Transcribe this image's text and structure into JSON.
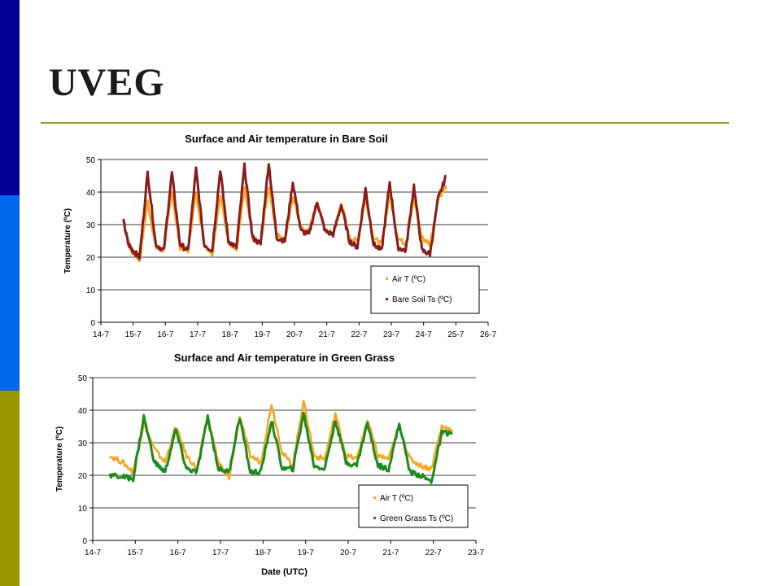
{
  "slide": {
    "title": "UVEG",
    "colors": {
      "bar_top": "#000099",
      "bar_mid": "#0066ee",
      "bar_bot": "#999900",
      "rule": "#999933"
    }
  },
  "chart_data": [
    {
      "type": "line",
      "title": "Surface and Air temperature in Bare Soil",
      "xlabel": "",
      "ylabel": "Temperature (ºC)",
      "x_ticks": [
        "14-7",
        "15-7",
        "16-7",
        "17-7",
        "18-7",
        "19-7",
        "20-7",
        "21-7",
        "22-7",
        "23-7",
        "24-7",
        "25-7",
        "26-7"
      ],
      "xlim": [
        0,
        12
      ],
      "ylim": [
        0,
        50
      ],
      "y_ticks": [
        0,
        10,
        20,
        30,
        40,
        50
      ],
      "grid": "horizontal",
      "legend_position": "bottom-right",
      "series": [
        {
          "name": "Air T (ºC)",
          "color": "#f5a623",
          "x": [
            0.7,
            0.85,
            0.95,
            1.05,
            1.2,
            1.45,
            1.7,
            1.95,
            2.2,
            2.45,
            2.7,
            2.95,
            3.2,
            3.45,
            3.7,
            3.95,
            4.2,
            4.45,
            4.7,
            4.95,
            5.2,
            5.45,
            5.7,
            5.95,
            6.2,
            6.45,
            6.7,
            6.95,
            7.2,
            7.45,
            7.7,
            7.95,
            8.2,
            8.45,
            8.7,
            8.95,
            9.2,
            9.45,
            9.7,
            9.95,
            10.2,
            10.45,
            10.7
          ],
          "y": [
            31,
            25,
            22,
            21,
            19,
            37,
            23,
            22,
            40,
            23,
            22,
            40,
            24,
            21,
            39,
            25,
            22,
            41,
            26,
            24,
            42,
            27,
            25,
            39,
            29,
            28,
            37,
            28,
            27,
            37,
            26,
            25,
            38,
            26,
            24,
            39,
            26,
            24,
            38,
            26,
            24,
            38,
            42
          ]
        },
        {
          "name": "Bare Soil Ts (ºC)",
          "color": "#8b1a1a",
          "x": [
            0.7,
            0.85,
            1.0,
            1.2,
            1.45,
            1.7,
            1.95,
            2.2,
            2.45,
            2.7,
            2.95,
            3.2,
            3.45,
            3.7,
            3.95,
            4.2,
            4.45,
            4.7,
            4.95,
            5.2,
            5.45,
            5.7,
            5.95,
            6.2,
            6.45,
            6.7,
            6.95,
            7.2,
            7.45,
            7.7,
            7.95,
            8.2,
            8.45,
            8.7,
            8.95,
            9.2,
            9.45,
            9.7,
            9.95,
            10.2,
            10.45,
            10.7
          ],
          "y": [
            31,
            24,
            22,
            20,
            46,
            24,
            22,
            46,
            24,
            22,
            47,
            24,
            22,
            47,
            25,
            23,
            48,
            26,
            24,
            49,
            26,
            25,
            43,
            28,
            27,
            37,
            28,
            27,
            36,
            25,
            23,
            41,
            24,
            22,
            43,
            23,
            22,
            42,
            22,
            21,
            38,
            45
          ]
        }
      ]
    },
    {
      "type": "line",
      "title": "Surface and Air temperature in Green Grass",
      "xlabel": "Date (UTC)",
      "ylabel": "Temperature (ºC)",
      "x_ticks": [
        "14-7",
        "15-7",
        "16-7",
        "17-7",
        "18-7",
        "19-7",
        "20-7",
        "21-7",
        "22-7",
        "23-7"
      ],
      "xlim": [
        0,
        9
      ],
      "ylim": [
        0,
        50
      ],
      "y_ticks": [
        0,
        10,
        20,
        30,
        40,
        50
      ],
      "grid": "horizontal",
      "legend_position": "bottom-right",
      "series": [
        {
          "name": "Air T (ºC)",
          "color": "#f5a623",
          "x": [
            0.4,
            0.7,
            0.95,
            1.2,
            1.45,
            1.7,
            1.95,
            2.2,
            2.45,
            2.7,
            2.95,
            3.2,
            3.45,
            3.7,
            3.95,
            4.2,
            4.45,
            4.7,
            4.95,
            5.2,
            5.45,
            5.7,
            5.95,
            6.2,
            6.45,
            6.7,
            6.95,
            7.2,
            7.45,
            7.7,
            7.95,
            8.2,
            8.45
          ],
          "y": [
            26,
            24,
            21,
            36,
            28,
            24,
            35,
            26,
            22,
            38,
            24,
            19,
            38,
            26,
            24,
            42,
            27,
            23,
            43,
            26,
            25,
            39,
            26,
            25,
            37,
            26,
            25,
            35,
            25,
            23,
            22,
            35,
            34
          ]
        },
        {
          "name": "Green Grass Ts (ºC)",
          "color": "#1a8a1a",
          "x": [
            0.4,
            0.7,
            0.95,
            1.2,
            1.45,
            1.7,
            1.95,
            2.2,
            2.45,
            2.7,
            2.95,
            3.2,
            3.45,
            3.7,
            3.95,
            4.2,
            4.45,
            4.7,
            4.95,
            5.2,
            5.45,
            5.7,
            5.95,
            6.2,
            6.45,
            6.7,
            6.95,
            7.2,
            7.45,
            7.7,
            7.95,
            8.2,
            8.45
          ],
          "y": [
            20,
            19.5,
            19,
            38,
            24,
            21,
            34,
            22,
            21,
            38,
            22,
            21,
            38,
            21,
            21,
            37,
            22,
            22,
            39,
            23,
            22,
            37,
            24,
            23,
            36,
            23,
            22,
            36,
            21,
            20,
            18,
            33,
            33
          ]
        }
      ]
    }
  ]
}
